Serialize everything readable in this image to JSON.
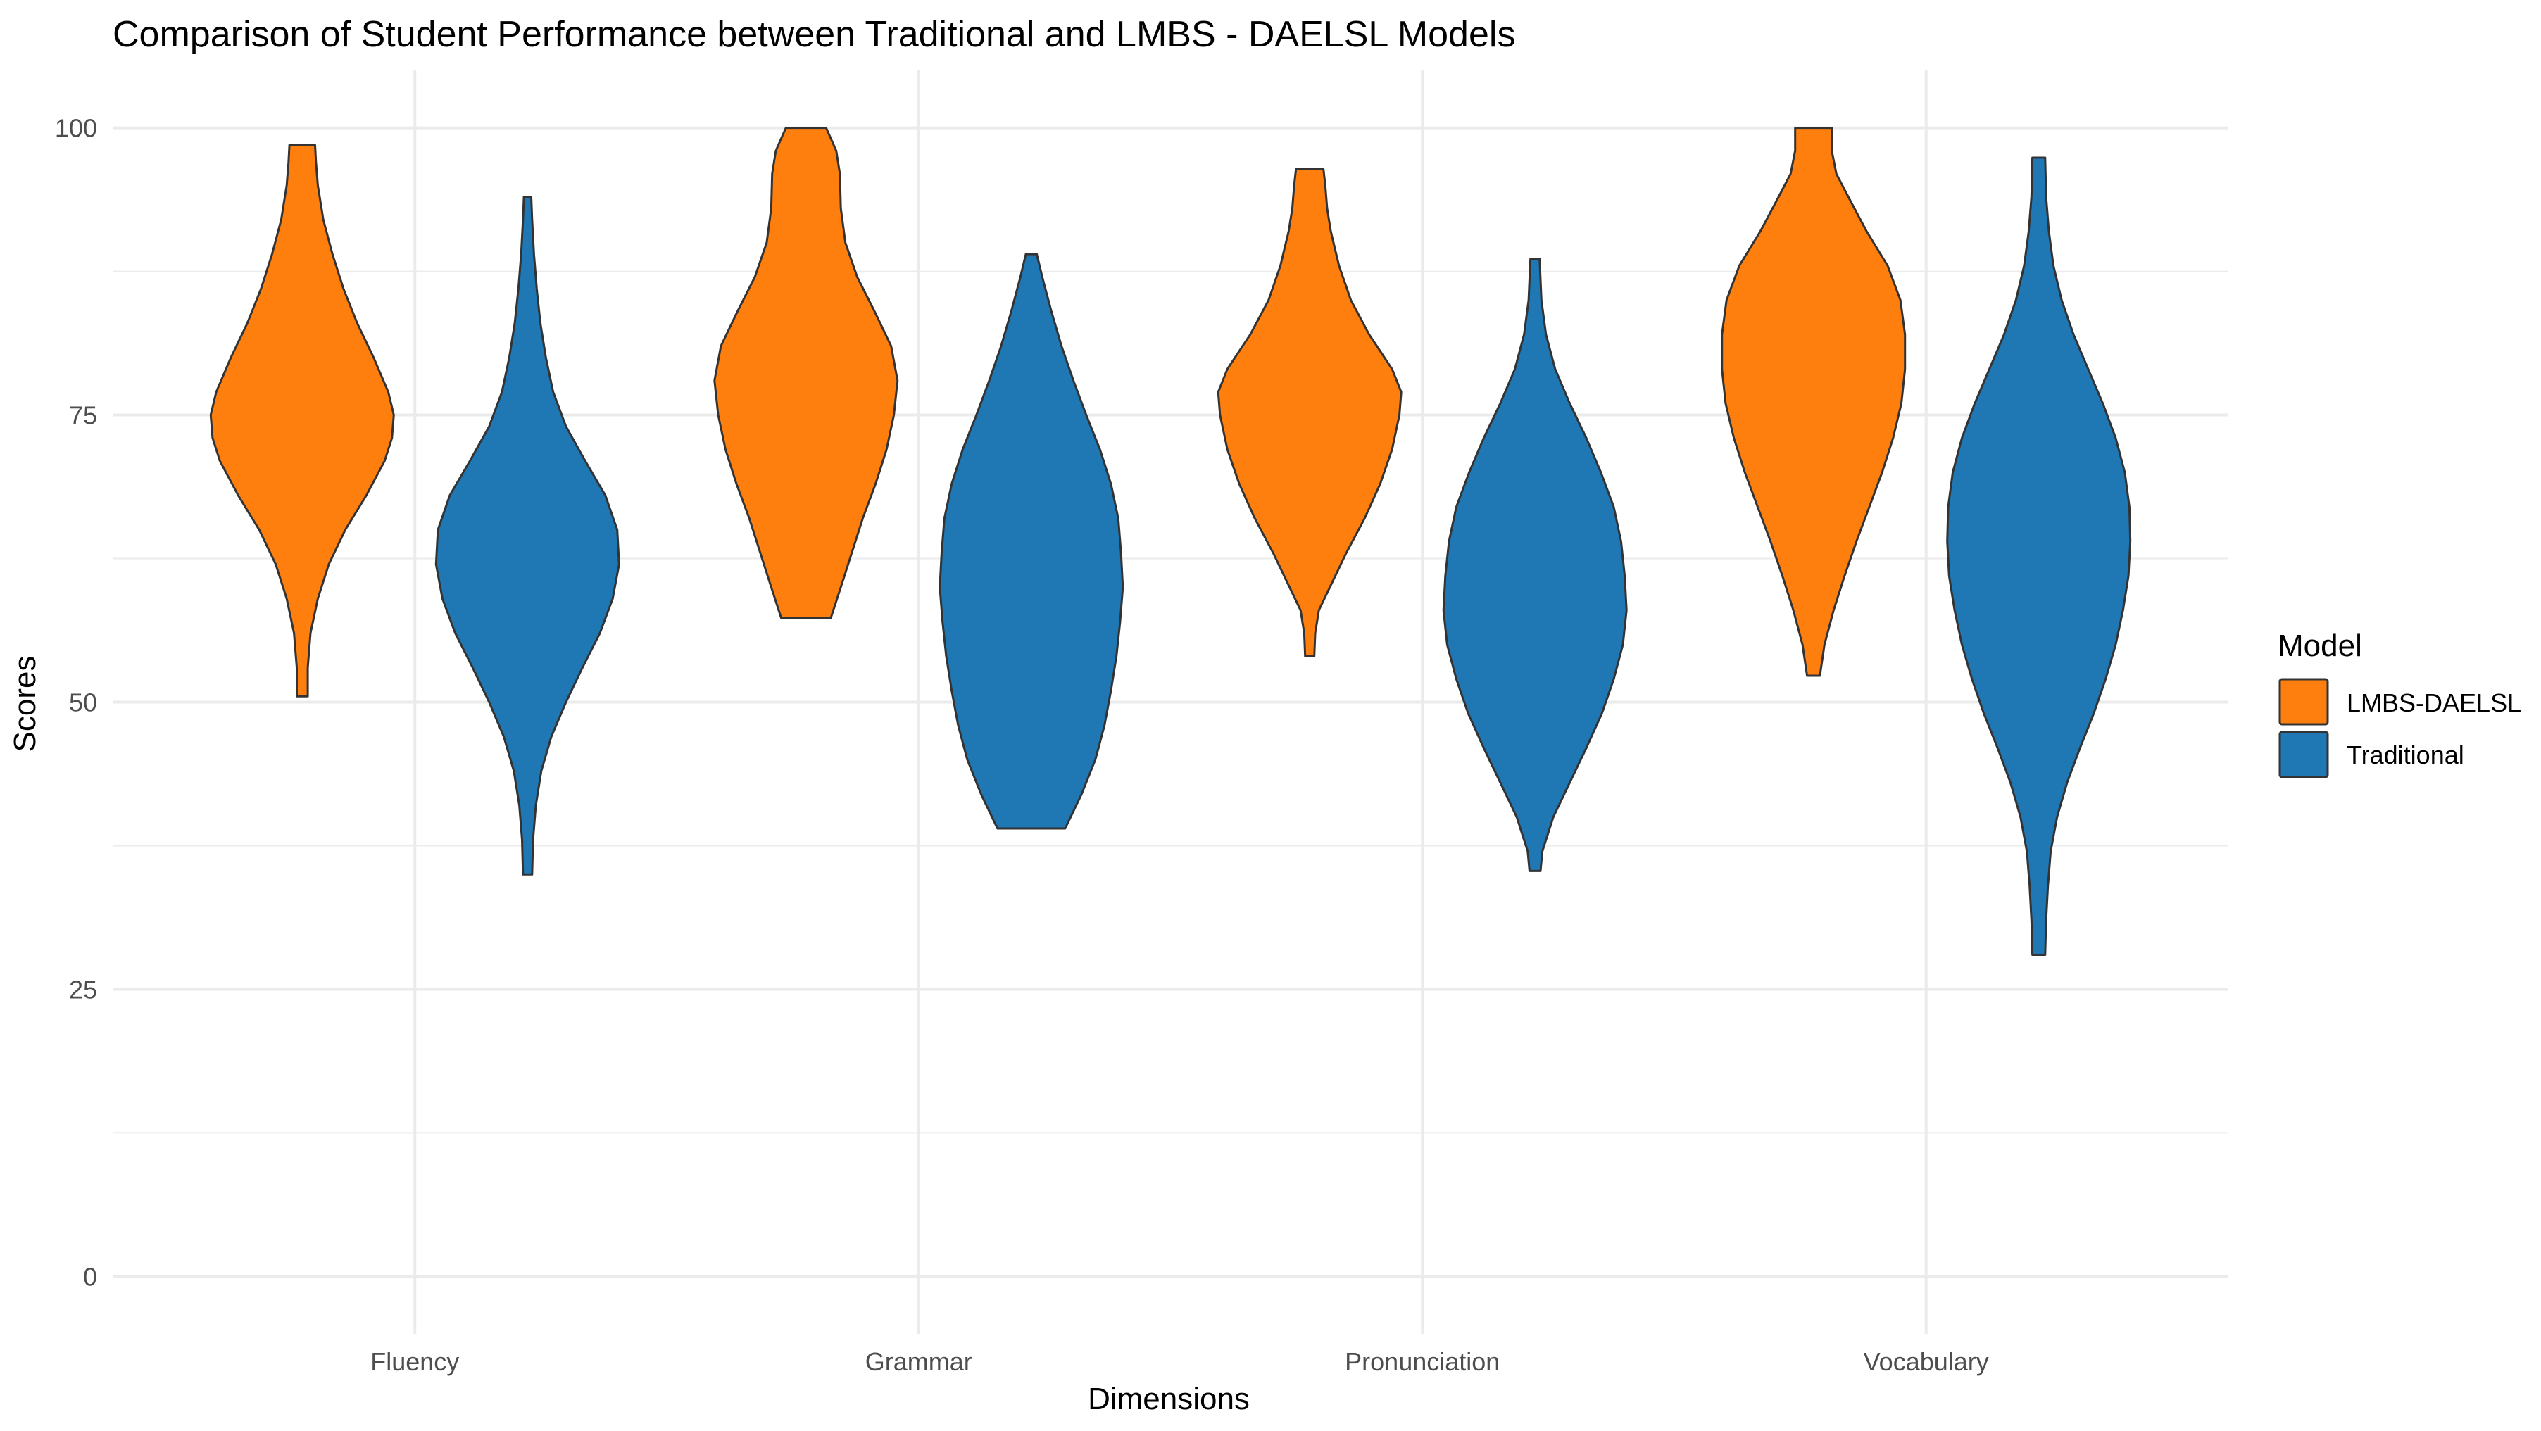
{
  "chart_data": {
    "type": "violin",
    "title": "Comparison of Student Performance between Traditional and LMBS - DAELSL Models",
    "xlabel": "Dimensions",
    "ylabel": "Scores",
    "categories": [
      "Fluency",
      "Grammar",
      "Pronunciation",
      "Vocabulary"
    ],
    "ylim": [
      -5,
      105
    ],
    "yticks": [
      0,
      25,
      50,
      75,
      100
    ],
    "grid": true,
    "legend": {
      "title": "Model",
      "position": "right",
      "entries": [
        "LMBS-DAELSL",
        "Traditional"
      ]
    },
    "colors": {
      "LMBS-DAELSL": "#ff7f0e",
      "Traditional": "#1f77b4",
      "outline": "#333333",
      "grid": "#ebebeb"
    },
    "series": [
      {
        "name": "LMBS-DAELSL",
        "violins": [
          {
            "category": "Fluency",
            "min": 50.5,
            "max": 98.5,
            "profile": [
              [
                50.5,
                0.06
              ],
              [
                53,
                0.06
              ],
              [
                56,
                0.09
              ],
              [
                59,
                0.17
              ],
              [
                62,
                0.29
              ],
              [
                65,
                0.47
              ],
              [
                68,
                0.7
              ],
              [
                71,
                0.9
              ],
              [
                73,
                0.98
              ],
              [
                75,
                1.0
              ],
              [
                77,
                0.94
              ],
              [
                80,
                0.78
              ],
              [
                83,
                0.6
              ],
              [
                86,
                0.45
              ],
              [
                89,
                0.33
              ],
              [
                92,
                0.23
              ],
              [
                95,
                0.17
              ],
              [
                97,
                0.15
              ],
              [
                98.5,
                0.14
              ]
            ]
          },
          {
            "category": "Grammar",
            "min": 57.3,
            "max": 100,
            "profile": [
              [
                57.3,
                0.27
              ],
              [
                60,
                0.38
              ],
              [
                63,
                0.5
              ],
              [
                66,
                0.62
              ],
              [
                69,
                0.76
              ],
              [
                72,
                0.88
              ],
              [
                75,
                0.96
              ],
              [
                78,
                1.0
              ],
              [
                81,
                0.93
              ],
              [
                84,
                0.75
              ],
              [
                87,
                0.56
              ],
              [
                90,
                0.43
              ],
              [
                93,
                0.38
              ],
              [
                96,
                0.37
              ],
              [
                98,
                0.33
              ],
              [
                100,
                0.22
              ]
            ]
          },
          {
            "category": "Pronunciation",
            "min": 54,
            "max": 96.4,
            "profile": [
              [
                54,
                0.05
              ],
              [
                56,
                0.06
              ],
              [
                58,
                0.1
              ],
              [
                60,
                0.22
              ],
              [
                63,
                0.4
              ],
              [
                66,
                0.6
              ],
              [
                69,
                0.77
              ],
              [
                72,
                0.9
              ],
              [
                75,
                0.98
              ],
              [
                77,
                1.0
              ],
              [
                79,
                0.9
              ],
              [
                82,
                0.65
              ],
              [
                85,
                0.45
              ],
              [
                88,
                0.32
              ],
              [
                91,
                0.23
              ],
              [
                93,
                0.19
              ],
              [
                95,
                0.17
              ],
              [
                96.4,
                0.15
              ]
            ]
          },
          {
            "category": "Vocabulary",
            "min": 52.3,
            "max": 100,
            "profile": [
              [
                52.3,
                0.07
              ],
              [
                55,
                0.12
              ],
              [
                58,
                0.22
              ],
              [
                61,
                0.34
              ],
              [
                64,
                0.47
              ],
              [
                67,
                0.61
              ],
              [
                70,
                0.75
              ],
              [
                73,
                0.87
              ],
              [
                76,
                0.96
              ],
              [
                79,
                1.0
              ],
              [
                82,
                1.0
              ],
              [
                85,
                0.95
              ],
              [
                88,
                0.81
              ],
              [
                91,
                0.58
              ],
              [
                94,
                0.38
              ],
              [
                96,
                0.25
              ],
              [
                98,
                0.2
              ],
              [
                100,
                0.2
              ]
            ]
          }
        ]
      },
      {
        "name": "Traditional",
        "violins": [
          {
            "category": "Fluency",
            "min": 35,
            "max": 94,
            "profile": [
              [
                35,
                0.05
              ],
              [
                38,
                0.06
              ],
              [
                41,
                0.09
              ],
              [
                44,
                0.15
              ],
              [
                47,
                0.26
              ],
              [
                50,
                0.42
              ],
              [
                53,
                0.6
              ],
              [
                56,
                0.79
              ],
              [
                59,
                0.93
              ],
              [
                62,
                1.0
              ],
              [
                65,
                0.98
              ],
              [
                68,
                0.85
              ],
              [
                71,
                0.63
              ],
              [
                74,
                0.42
              ],
              [
                77,
                0.28
              ],
              [
                80,
                0.2
              ],
              [
                83,
                0.14
              ],
              [
                86,
                0.1
              ],
              [
                89,
                0.07
              ],
              [
                92,
                0.05
              ],
              [
                94,
                0.04
              ]
            ]
          },
          {
            "category": "Grammar",
            "min": 39,
            "max": 89,
            "profile": [
              [
                39,
                0.37
              ],
              [
                42,
                0.55
              ],
              [
                45,
                0.7
              ],
              [
                48,
                0.8
              ],
              [
                51,
                0.87
              ],
              [
                54,
                0.93
              ],
              [
                57,
                0.97
              ],
              [
                60,
                1.0
              ],
              [
                63,
                0.98
              ],
              [
                66,
                0.95
              ],
              [
                69,
                0.87
              ],
              [
                72,
                0.75
              ],
              [
                75,
                0.6
              ],
              [
                78,
                0.46
              ],
              [
                81,
                0.33
              ],
              [
                84,
                0.22
              ],
              [
                87,
                0.12
              ],
              [
                89,
                0.06
              ]
            ]
          },
          {
            "category": "Pronunciation",
            "min": 35.3,
            "max": 88.6,
            "profile": [
              [
                35.3,
                0.06
              ],
              [
                37,
                0.08
              ],
              [
                40,
                0.2
              ],
              [
                43,
                0.38
              ],
              [
                46,
                0.56
              ],
              [
                49,
                0.73
              ],
              [
                52,
                0.86
              ],
              [
                55,
                0.96
              ],
              [
                58,
                1.0
              ],
              [
                61,
                0.98
              ],
              [
                64,
                0.94
              ],
              [
                67,
                0.86
              ],
              [
                70,
                0.72
              ],
              [
                73,
                0.56
              ],
              [
                76,
                0.38
              ],
              [
                79,
                0.22
              ],
              [
                82,
                0.12
              ],
              [
                85,
                0.07
              ],
              [
                88.6,
                0.05
              ]
            ]
          },
          {
            "category": "Vocabulary",
            "min": 28,
            "max": 97.4,
            "profile": [
              [
                28,
                0.07
              ],
              [
                31,
                0.08
              ],
              [
                34,
                0.1
              ],
              [
                37,
                0.13
              ],
              [
                40,
                0.2
              ],
              [
                43,
                0.31
              ],
              [
                46,
                0.45
              ],
              [
                49,
                0.6
              ],
              [
                52,
                0.73
              ],
              [
                55,
                0.84
              ],
              [
                58,
                0.92
              ],
              [
                61,
                0.98
              ],
              [
                64,
                1.0
              ],
              [
                67,
                0.99
              ],
              [
                70,
                0.94
              ],
              [
                73,
                0.84
              ],
              [
                76,
                0.7
              ],
              [
                79,
                0.54
              ],
              [
                82,
                0.38
              ],
              [
                85,
                0.25
              ],
              [
                88,
                0.16
              ],
              [
                91,
                0.11
              ],
              [
                94,
                0.08
              ],
              [
                97.4,
                0.07
              ]
            ]
          }
        ]
      }
    ]
  }
}
